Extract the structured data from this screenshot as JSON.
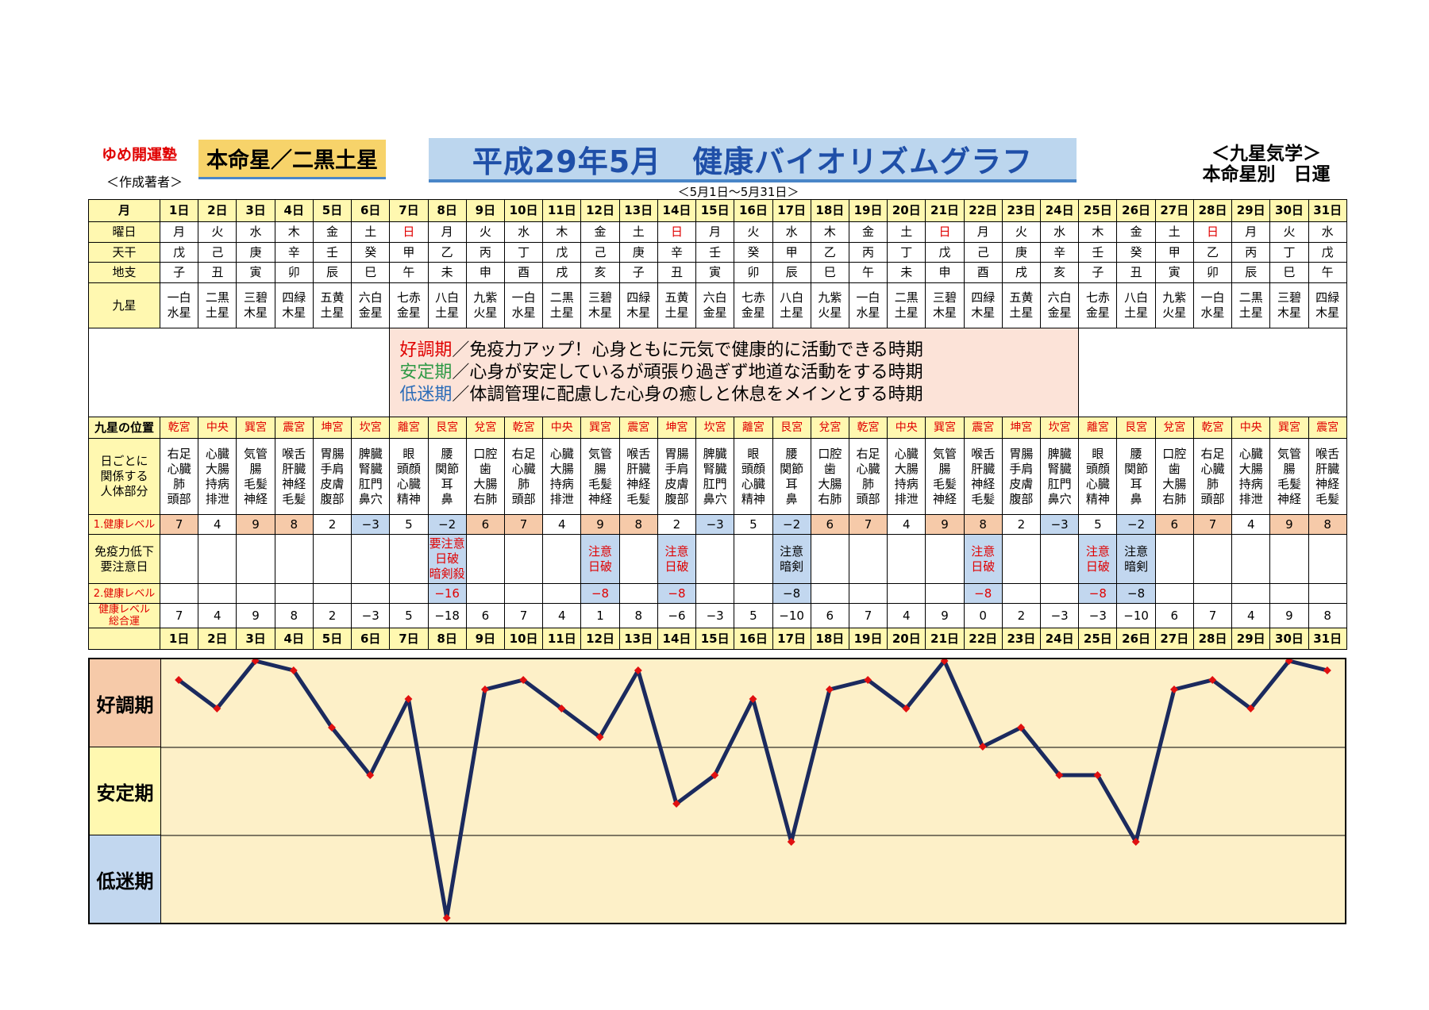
{
  "header": {
    "org": "ゆめ開運塾",
    "author": "＜作成著者＞",
    "honmei": "本命星／二黒土星",
    "title": "平成29年5月　健康バイオリズムグラフ",
    "system_line1": "＜九星気学＞",
    "system_line2": "本命星別　日運",
    "range": "＜5月1日～5月31日＞"
  },
  "labels": {
    "month": "月",
    "weekday": "曜日",
    "tenkan": "天干",
    "chishi": "地支",
    "kyusei": "九星",
    "position": "九星の位置",
    "body": "日ごとに\n関係する\n人体部分",
    "level1": "1.健康レベル",
    "caution": "免疫力低下\n要注意日",
    "level2": "2.健康レベル",
    "total": "健康レベル\n総合運"
  },
  "legend": {
    "good_label": "好調期",
    "good_text": "／免疫力アップ！心身ともに元気で健康的に活動できる時期",
    "stable_label": "安定期",
    "stable_text": "／心身が安定しているが頑張り過ぎず地道な活動をする時期",
    "low_label": "低迷期",
    "low_text": "／体調管理に配慮した心身の癒しと休息をメインとする時期"
  },
  "days": [
    "1日",
    "2日",
    "3日",
    "4日",
    "5日",
    "6日",
    "7日",
    "8日",
    "9日",
    "10日",
    "11日",
    "12日",
    "13日",
    "14日",
    "15日",
    "16日",
    "17日",
    "18日",
    "19日",
    "20日",
    "21日",
    "22日",
    "23日",
    "24日",
    "25日",
    "26日",
    "27日",
    "28日",
    "29日",
    "30日",
    "31日"
  ],
  "weekdays": [
    "月",
    "火",
    "水",
    "木",
    "金",
    "土",
    "日",
    "月",
    "火",
    "水",
    "木",
    "金",
    "土",
    "日",
    "月",
    "火",
    "水",
    "木",
    "金",
    "土",
    "日",
    "月",
    "火",
    "水",
    "木",
    "金",
    "土",
    "日",
    "月",
    "火",
    "水"
  ],
  "tenkan": [
    "戊",
    "己",
    "庚",
    "辛",
    "壬",
    "癸",
    "甲",
    "乙",
    "丙",
    "丁",
    "戊",
    "己",
    "庚",
    "辛",
    "壬",
    "癸",
    "甲",
    "乙",
    "丙",
    "丁",
    "戊",
    "己",
    "庚",
    "辛",
    "壬",
    "癸",
    "甲",
    "乙",
    "丙",
    "丁",
    "戊"
  ],
  "chishi": [
    "子",
    "丑",
    "寅",
    "卯",
    "辰",
    "巳",
    "午",
    "未",
    "申",
    "酉",
    "戌",
    "亥",
    "子",
    "丑",
    "寅",
    "卯",
    "辰",
    "巳",
    "午",
    "未",
    "申",
    "酉",
    "戌",
    "亥",
    "子",
    "丑",
    "寅",
    "卯",
    "辰",
    "巳",
    "午"
  ],
  "kyusei": [
    "一白\n水星",
    "二黒\n土星",
    "三碧\n木星",
    "四緑\n木星",
    "五黄\n土星",
    "六白\n金星",
    "七赤\n金星",
    "八白\n土星",
    "九紫\n火星",
    "一白\n水星",
    "二黒\n土星",
    "三碧\n木星",
    "四緑\n木星",
    "五黄\n土星",
    "六白\n金星",
    "七赤\n金星",
    "八白\n土星",
    "九紫\n火星",
    "一白\n水星",
    "二黒\n土星",
    "三碧\n木星",
    "四緑\n木星",
    "五黄\n土星",
    "六白\n金星",
    "七赤\n金星",
    "八白\n土星",
    "九紫\n火星",
    "一白\n水星",
    "二黒\n土星",
    "三碧\n木星",
    "四緑\n木星"
  ],
  "positions": [
    "乾宮",
    "中央",
    "巽宮",
    "震宮",
    "坤宮",
    "坎宮",
    "離宮",
    "艮宮",
    "兌宮",
    "乾宮",
    "中央",
    "巽宮",
    "震宮",
    "坤宮",
    "坎宮",
    "離宮",
    "艮宮",
    "兌宮",
    "乾宮",
    "中央",
    "巽宮",
    "震宮",
    "坤宮",
    "坎宮",
    "離宮",
    "艮宮",
    "兌宮",
    "乾宮",
    "中央",
    "巽宮",
    "震宮"
  ],
  "body_parts": [
    "右足\n心臓\n肺\n頭部",
    "心臓\n大腸\n持病\n排泄",
    "気管\n腸\n毛髪\n神経",
    "喉舌\n肝臓\n神経\n毛髪",
    "胃腸\n手肩\n皮膚\n腹部",
    "脾臓\n腎臓\n肛門\n鼻穴",
    "眼\n頭顔\n心臓\n精神",
    "腰\n関節\n耳\n鼻",
    "口腔\n歯\n大腸\n右肺",
    "右足\n心臓\n肺\n頭部",
    "心臓\n大腸\n持病\n排泄",
    "気管\n腸\n毛髪\n神経",
    "喉舌\n肝臓\n神経\n毛髪",
    "胃腸\n手肩\n皮膚\n腹部",
    "脾臓\n腎臓\n肛門\n鼻穴",
    "眼\n頭顔\n心臓\n精神",
    "腰\n関節\n耳\n鼻",
    "口腔\n歯\n大腸\n右肺",
    "右足\n心臓\n肺\n頭部",
    "心臓\n大腸\n持病\n排泄",
    "気管\n腸\n毛髪\n神経",
    "喉舌\n肝臓\n神経\n毛髪",
    "胃腸\n手肩\n皮膚\n腹部",
    "脾臓\n腎臓\n肛門\n鼻穴",
    "眼\n頭顔\n心臓\n精神",
    "腰\n関節\n耳\n鼻",
    "口腔\n歯\n大腸\n右肺",
    "右足\n心臓\n肺\n頭部",
    "心臓\n大腸\n持病\n排泄",
    "気管\n腸\n毛髪\n神経",
    "喉舌\n肝臓\n神経\n毛髪"
  ],
  "level1": [
    "7",
    "4",
    "9",
    "8",
    "2",
    "−3",
    "5",
    "−2",
    "6",
    "7",
    "4",
    "9",
    "8",
    "2",
    "−3",
    "5",
    "−2",
    "6",
    "7",
    "4",
    "9",
    "8",
    "2",
    "−3",
    "5",
    "−2",
    "6",
    "7",
    "4",
    "9",
    "8"
  ],
  "caution": [
    "",
    "",
    "",
    "",
    "",
    "",
    "",
    "要注意\n日破\n暗剣殺",
    "",
    "",
    "",
    "注意\n日破",
    "",
    "注意\n日破",
    "",
    "",
    "注意\n暗剣",
    "",
    "",
    "",
    "",
    "注意\n日破",
    "",
    "",
    "注意\n日破",
    "注意\n暗剣",
    "",
    "",
    "",
    "",
    ""
  ],
  "level2": [
    "",
    "",
    "",
    "",
    "",
    "",
    "",
    "−16",
    "",
    "",
    "",
    "−8",
    "",
    "−8",
    "",
    "",
    "−8",
    "",
    "",
    "",
    "",
    "−8",
    "",
    "",
    "−8",
    "−8",
    "",
    "",
    "",
    "",
    ""
  ],
  "total": [
    "7",
    "4",
    "9",
    "8",
    "2",
    "−3",
    "5",
    "−18",
    "6",
    "7",
    "4",
    "1",
    "8",
    "−6",
    "−3",
    "5",
    "−10",
    "6",
    "7",
    "4",
    "9",
    "0",
    "2",
    "−3",
    "−3",
    "−10",
    "6",
    "7",
    "4",
    "9",
    "8"
  ],
  "chart_data": {
    "type": "line",
    "x": [
      "1日",
      "2日",
      "3日",
      "4日",
      "5日",
      "6日",
      "7日",
      "8日",
      "9日",
      "10日",
      "11日",
      "12日",
      "13日",
      "14日",
      "15日",
      "16日",
      "17日",
      "18日",
      "19日",
      "20日",
      "21日",
      "22日",
      "23日",
      "24日",
      "25日",
      "26日",
      "27日",
      "28日",
      "29日",
      "30日",
      "31日"
    ],
    "values": [
      7,
      4,
      9,
      8,
      2,
      -3,
      5,
      -18,
      6,
      7,
      4,
      1,
      8,
      -6,
      -3,
      5,
      -10,
      6,
      7,
      4,
      9,
      0,
      2,
      -3,
      -3,
      -10,
      6,
      7,
      4,
      9,
      8
    ],
    "ylim": [
      -18,
      9
    ],
    "bands": [
      "好調期",
      "安定期",
      "低迷期"
    ],
    "line_color": "#1b2a5e",
    "marker_color": "#e01010",
    "background": "#fdf0c8"
  },
  "colors": {
    "header_yellow": "#fff8b0",
    "good": "#f6caa9",
    "bad": "#c2d7ef",
    "title_blue": "#1f4fa8"
  }
}
